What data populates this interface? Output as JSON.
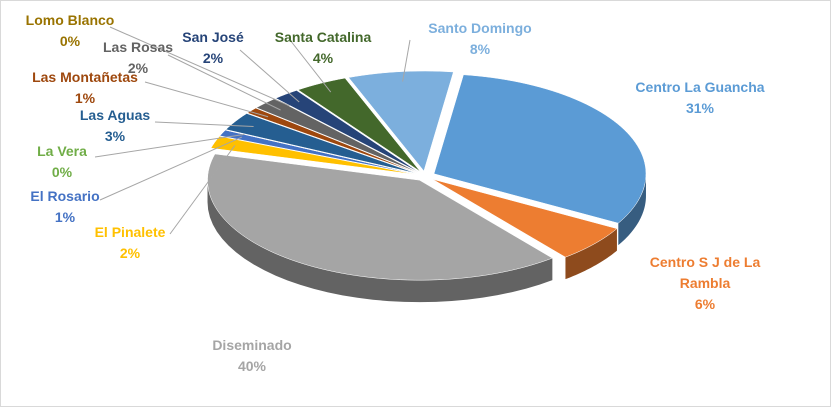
{
  "chart_data": {
    "type": "pie",
    "categories": [
      "Centro La Guancha",
      "Centro S J de La Rambla",
      "Diseminado",
      "El Pinalete",
      "El Rosario",
      "La Vera",
      "Las Aguas",
      "Las Montañetas",
      "Las Rosas",
      "Lomo Blanco",
      "San José",
      "Santa Catalina",
      "Santo Domingo"
    ],
    "values": [
      31,
      6,
      40,
      2,
      1,
      0,
      3,
      1,
      2,
      0,
      2,
      4,
      8
    ],
    "value_labels": [
      "31%",
      "6%",
      "40%",
      "2%",
      "1%",
      "0%",
      "3%",
      "1%",
      "2%",
      "0%",
      "2%",
      "4%",
      "8%"
    ],
    "colors": [
      "#5b9bd5",
      "#ed7d31",
      "#a5a5a5",
      "#ffc000",
      "#4472c4",
      "#70ad47",
      "#255e91",
      "#9e480e",
      "#636363",
      "#997300",
      "#264478",
      "#43682b",
      "#7cafdd"
    ]
  }
}
